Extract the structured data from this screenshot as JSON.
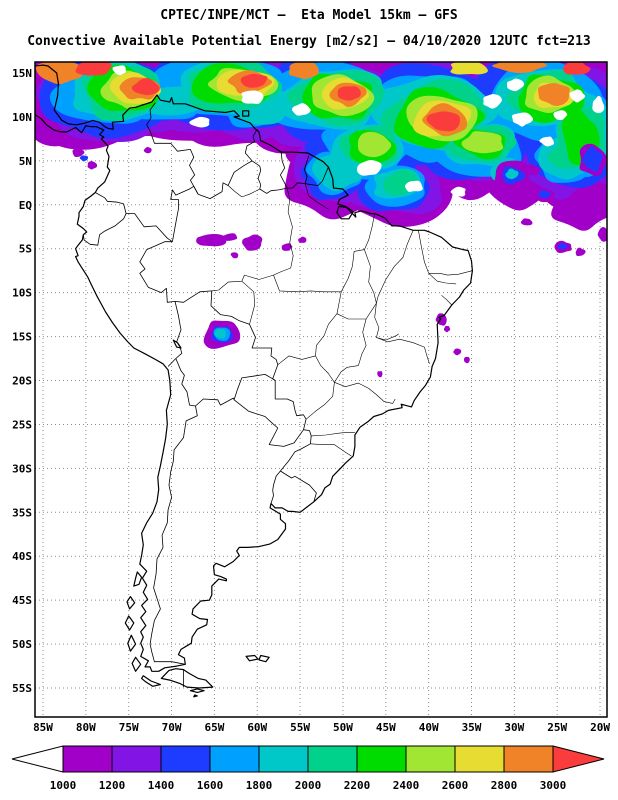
{
  "header": {
    "line1": "CPTEC/INPE/MCT —  Eta Model 15km — GFS",
    "line2": "Convective Available Potential Energy [m2/s2] — 04/10/2020 12UTC fct=213"
  },
  "map": {
    "lat_ticks": [
      "15N",
      "10N",
      "5N",
      "EQ",
      "5S",
      "10S",
      "15S",
      "20S",
      "25S",
      "30S",
      "35S",
      "40S",
      "45S",
      "50S",
      "55S"
    ],
    "lon_ticks": [
      "85W",
      "80W",
      "75W",
      "70W",
      "65W",
      "60W",
      "55W",
      "50W",
      "45W",
      "40W",
      "35W",
      "30W",
      "25W",
      "20W"
    ]
  },
  "colorbar": {
    "labels": [
      "1000",
      "1200",
      "1400",
      "1600",
      "1800",
      "2000",
      "2200",
      "2400",
      "2600",
      "2800",
      "3000"
    ],
    "segment_colors": [
      "#a000c8",
      "#8214e6",
      "#1e3cff",
      "#00a0ff",
      "#00c8c8",
      "#00d28c",
      "#00dc00",
      "#a0e632",
      "#e6dc32",
      "#f08228"
    ],
    "below_min_color": "#ffffff",
    "above_max_color": "#fa3c3c"
  },
  "chart_data": {
    "type": "heatmap",
    "title": "Convective Available Potential Energy [m2/s2]",
    "source": "CPTEC/INPE/MCT",
    "model": "Eta Model 15km — GFS",
    "run": "04/10/2020 12UTC",
    "forecast": "fct=213",
    "units": "m2/s2",
    "levels": [
      1000,
      1200,
      1400,
      1600,
      1800,
      2000,
      2200,
      2400,
      2600,
      2800,
      3000
    ],
    "palette": {
      "1000": "#a000c8",
      "1200": "#8214e6",
      "1400": "#1e3cff",
      "1600": "#00a0ff",
      "1800": "#00c8c8",
      "2000": "#00d28c",
      "2200": "#00dc00",
      "2400": "#a0e632",
      "2600": "#e6dc32",
      "2800": "#f08228",
      "3000": "#fa3c3c",
      "hole": "#ffffff"
    },
    "lon_range_deg_west": [
      85,
      20
    ],
    "lat_range": [
      "15N",
      "55S"
    ],
    "grid_interval_deg": 5,
    "high_cape_regions": [
      {
        "area": "Tropical North Atlantic / Caribbean band, 86W-20W, 4N-16N",
        "cape_m2_s2": "1000 to >3000; maxima >3000 near 82W 14N, 60W 14N, 49W 14N, 44W 12N"
      },
      {
        "area": "NE South America coast near Amazon mouth, 50W-44W, 2N-2S",
        "cape_m2_s2": "1000-2600"
      },
      {
        "area": "Central Amazon, 67W-55W, 2S-5S",
        "cape_m2_s2": "1000-1400 patches"
      },
      {
        "area": "Bolivia lowlands near 64W 15S",
        "cape_m2_s2": "1000-1800"
      },
      {
        "area": "Bahia coast Brazil near 38.5W 13S",
        "cape_m2_s2": "1000-1200 specks"
      },
      {
        "area": "Equatorial Atlantic scattered cells, 32W-19W, 6N-6S",
        "cape_m2_s2": "1000-1800"
      }
    ]
  }
}
